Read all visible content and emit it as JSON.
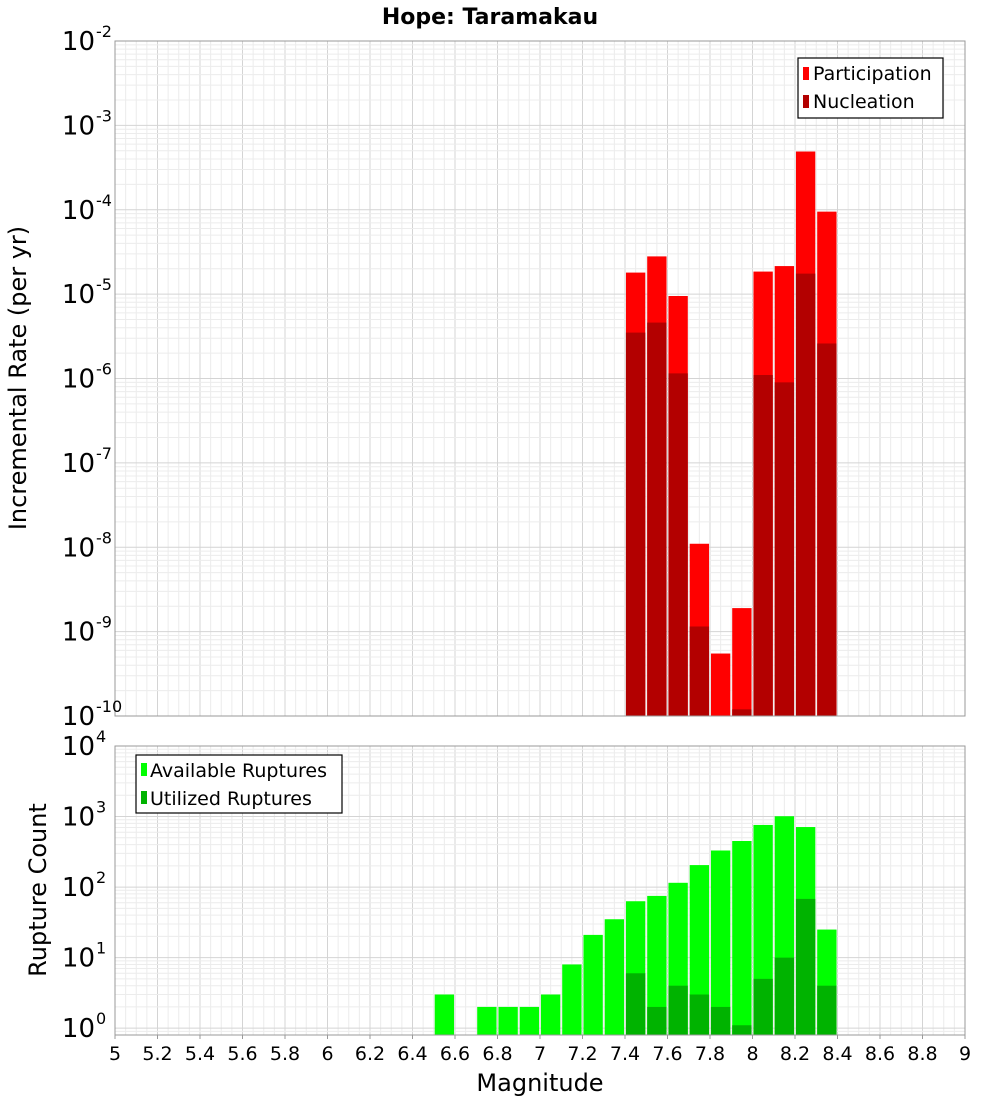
{
  "title": "Hope: Taramakau",
  "chart_data": [
    {
      "type": "bar",
      "ylabel": "Incremental Rate (per yr)",
      "xlabel": "",
      "yscale": "log",
      "ylim": [
        1e-10,
        0.01
      ],
      "xlim": [
        5,
        9
      ],
      "y_ticks": [
        {
          "base": "10",
          "exp": "-10"
        },
        {
          "base": "10",
          "exp": "-9"
        },
        {
          "base": "10",
          "exp": "-8"
        },
        {
          "base": "10",
          "exp": "-7"
        },
        {
          "base": "10",
          "exp": "-6"
        },
        {
          "base": "10",
          "exp": "-5"
        },
        {
          "base": "10",
          "exp": "-4"
        },
        {
          "base": "10",
          "exp": "-3"
        },
        {
          "base": "10",
          "exp": "-2"
        }
      ],
      "grid": true,
      "legend_position": "top-right",
      "x": [
        7.45,
        7.55,
        7.65,
        7.75,
        7.85,
        7.95,
        8.05,
        8.15,
        8.25,
        8.35
      ],
      "series": [
        {
          "name": "Participation",
          "color": "#ff0000",
          "values": [
            1.8e-05,
            2.8e-05,
            9.5e-06,
            1.1e-08,
            5.5e-10,
            1.9e-09,
            1.85e-05,
            2.15e-05,
            0.00049,
            9.5e-05
          ]
        },
        {
          "name": "Nucleation",
          "color": "#b30000",
          "values": [
            3.5e-06,
            4.6e-06,
            1.15e-06,
            1.15e-09,
            1e-10,
            1.2e-10,
            1.1e-06,
            9e-07,
            1.75e-05,
            2.6e-06
          ]
        }
      ]
    },
    {
      "type": "bar",
      "ylabel": "Rupture Count",
      "xlabel": "Magnitude",
      "yscale": "log",
      "ylim": [
        0.8,
        10000.0
      ],
      "xlim": [
        5,
        9
      ],
      "x_ticks": [
        "5",
        "5.2",
        "5.4",
        "5.6",
        "5.8",
        "6",
        "6.2",
        "6.4",
        "6.6",
        "6.8",
        "7",
        "7.2",
        "7.4",
        "7.6",
        "7.8",
        "8",
        "8.2",
        "8.4",
        "8.6",
        "8.8",
        "9"
      ],
      "y_ticks": [
        {
          "base": "10",
          "exp": "0"
        },
        {
          "base": "10",
          "exp": "1"
        },
        {
          "base": "10",
          "exp": "2"
        },
        {
          "base": "10",
          "exp": "3"
        },
        {
          "base": "10",
          "exp": "4"
        }
      ],
      "grid": true,
      "legend_position": "top-left",
      "x": [
        6.55,
        6.75,
        6.85,
        6.95,
        7.05,
        7.15,
        7.25,
        7.35,
        7.45,
        7.55,
        7.65,
        7.75,
        7.85,
        7.95,
        8.05,
        8.15,
        8.25,
        8.35
      ],
      "series": [
        {
          "name": "Available Ruptures",
          "color": "#00ff00",
          "values": [
            3,
            2,
            2,
            2,
            3,
            8,
            21,
            35,
            63,
            75,
            115,
            205,
            330,
            450,
            760,
            1010,
            710,
            25
          ]
        },
        {
          "name": "Utilized Ruptures",
          "color": "#00b300",
          "values": [
            0,
            0,
            0,
            0,
            0,
            0,
            0,
            0,
            6,
            2,
            4,
            3,
            2,
            1.1,
            5,
            10,
            68,
            4
          ]
        }
      ]
    }
  ]
}
